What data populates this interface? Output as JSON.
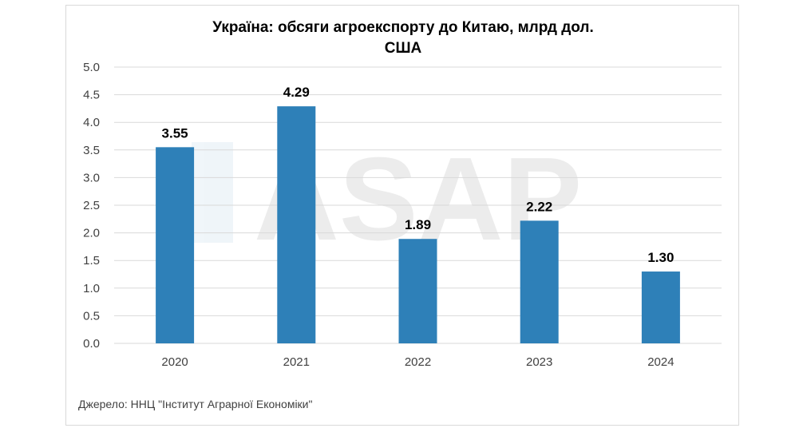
{
  "chart_data": {
    "type": "bar",
    "title_lines": [
      "Україна: обсяги агроекспорту до Китаю, млрд дол.",
      "США"
    ],
    "categories": [
      "2020",
      "2021",
      "2022",
      "2023",
      "2024"
    ],
    "values": [
      3.55,
      4.29,
      1.89,
      2.22,
      1.3
    ],
    "value_labels": [
      "3.55",
      "4.29",
      "1.89",
      "2.22",
      "1.30"
    ],
    "y_ticks": [
      "0.0",
      "0.5",
      "1.0",
      "1.5",
      "2.0",
      "2.5",
      "3.0",
      "3.5",
      "4.0",
      "4.5",
      "5.0"
    ],
    "ylim": [
      0,
      5
    ],
    "grid": true,
    "legend": "none",
    "bar_color": "#2e80b8"
  },
  "source": "Джерело: ННЦ \"Інститут Аграрної Економіки\"",
  "watermark": "ASAP"
}
